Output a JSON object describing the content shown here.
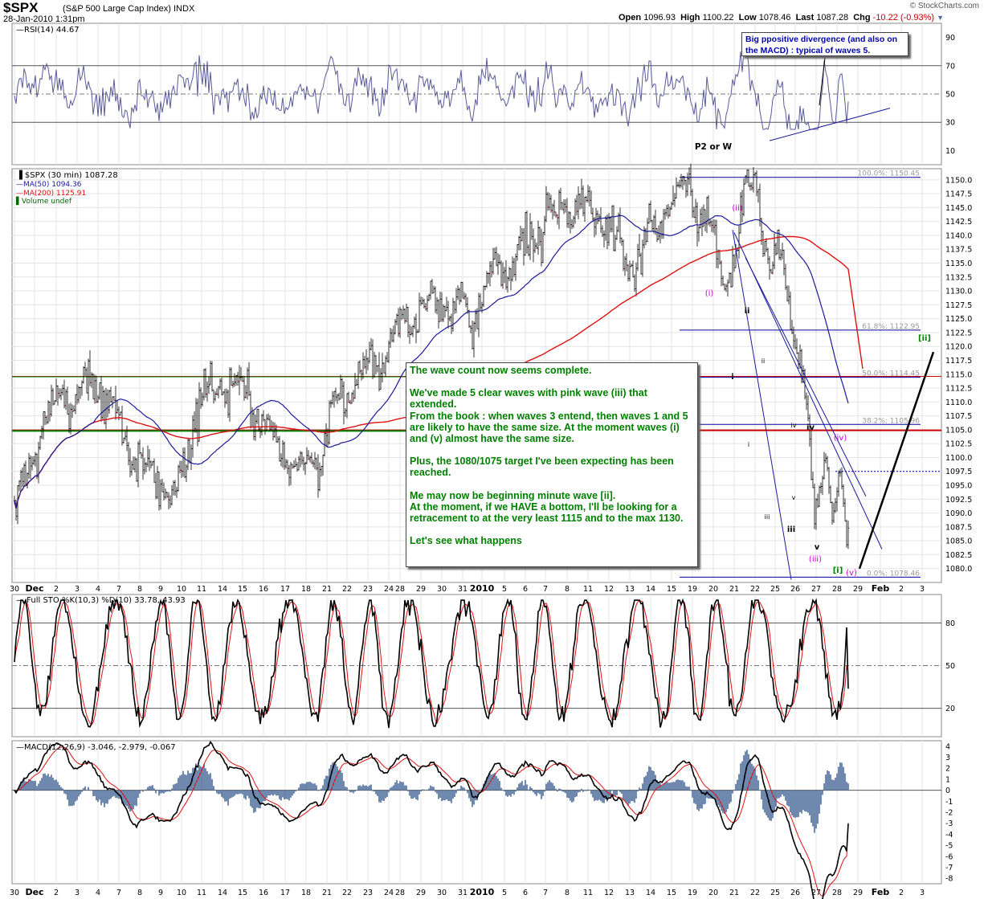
{
  "header": {
    "symbol": "$SPX",
    "description": "(S&P 500 Large Cap Index) INDX",
    "datetime": "28-Jan-2010 1:31pm",
    "brand": "© StockCharts.com",
    "open_label": "Open",
    "open_value": "1096.93",
    "high_label": "High",
    "high_value": "1100.22",
    "low_label": "Low",
    "low_value": "1078.46",
    "last_label": "Last",
    "last_value": "1087.28",
    "chg_label": "Chg",
    "chg_value": "-10.22 (-0.93%)"
  },
  "colors": {
    "rsi": "#5a5a9a",
    "ma50": "#1a1a9a",
    "ma200": "#dd1111",
    "stoK": "#000000",
    "stoD": "#dd1111",
    "macd": "#000000",
    "signal": "#dd1111",
    "hist": "#4a6a9a",
    "fib": "#0000a0",
    "pink": "#cc00cc",
    "note": "#008000",
    "resistance": "#cc0000",
    "support": "#008000"
  },
  "x_axis": {
    "ticks": [
      "30",
      "Dec",
      "2",
      "3",
      "4",
      "7",
      "8",
      "9",
      "10",
      "11",
      "14",
      "15",
      "16",
      "17",
      "18",
      "21",
      "22",
      "23",
      "24",
      "28",
      "29",
      "30",
      "31",
      "2010",
      "5",
      "6",
      "7",
      "8",
      "11",
      "12",
      "13",
      "14",
      "15",
      "19",
      "20",
      "21",
      "22",
      "25",
      "26",
      "27",
      "28",
      "29",
      "Feb",
      "2",
      "3"
    ]
  },
  "notes": {
    "main": [
      "The wave count now seems complete.",
      "We've made 5 clear waves with pink wave (iii) that extended.\nFrom the book : when waves 3 entend, then waves 1 and 5 are likely to have the same size. At the moment waves (i) and (v) almost have the same size.",
      "Plus, the 1080/1075 target I've been expecting has been reached.",
      "Me may now be beginning minute wave [ii].\nAt the moment, if we HAVE a bottom, I'll be looking for a retracement to at the very least 1115 and to the max 1130.",
      "Let's see what happens"
    ],
    "rsi": "Big ppositive divergence (and also on the MACD) : typical of waves 5.",
    "p2w": "P2 or W"
  },
  "chart_data": [
    {
      "type": "line",
      "title": "RSI(14) 44.67",
      "series": [
        {
          "name": "RSI(14)",
          "last": 44.67
        }
      ],
      "ylim": [
        0,
        100
      ],
      "yticks": [
        10,
        30,
        50,
        70,
        90
      ],
      "levels": [
        30,
        50,
        70
      ]
    },
    {
      "type": "candlestick",
      "title": "$SPX (30 min) 1087.28",
      "legend": [
        {
          "name": "$SPX (30 min)",
          "value": "1087.28"
        },
        {
          "name": "MA(50)",
          "value": "1094.36"
        },
        {
          "name": "MA(200)",
          "value": "1125.91"
        },
        {
          "name": "Volume undef",
          "value": ""
        }
      ],
      "ylim": [
        1077.5,
        1152
      ],
      "yticks": [
        1080,
        1082.5,
        1085,
        1087.5,
        1090,
        1092.5,
        1095,
        1097.5,
        1100,
        1102.5,
        1105,
        1107.5,
        1110,
        1112.5,
        1115,
        1117.5,
        1120,
        1122.5,
        1125,
        1127.5,
        1130,
        1132.5,
        1135,
        1137.5,
        1140,
        1142.5,
        1145,
        1147.5,
        1150
      ],
      "fib_levels": [
        {
          "label": "100.0%: 1150.45",
          "value": 1150.45
        },
        {
          "label": "61.8%: 1122.95",
          "value": 1122.95
        },
        {
          "label": "50.0%: 1114.45",
          "value": 1114.45
        },
        {
          "label": "38.2%: 1105.96",
          "value": 1105.96
        },
        {
          "label": "0.0%: 1078.46",
          "value": 1078.46
        }
      ],
      "horizontal_lines": [
        {
          "name": "red resistance",
          "value": 1114.6
        },
        {
          "name": "green 1",
          "value": 1114.6
        },
        {
          "name": "red support",
          "value": 1104.9
        },
        {
          "name": "green 2",
          "value": 1104.9
        }
      ],
      "wave_labels": [
        "(i)",
        "(ii)",
        "(iii)",
        "(iv)",
        "(v)",
        "i",
        "ii",
        "iii",
        "iv",
        "v",
        "i",
        "ii",
        "iii",
        "iv",
        "v",
        "[i]",
        "[ii]"
      ]
    },
    {
      "type": "line",
      "title": "Full STO %K(10,3) %D(10) 33.78, 43.93",
      "series": [
        {
          "name": "%K(10,3)",
          "last": 33.78
        },
        {
          "name": "%D(10)",
          "last": 43.93
        }
      ],
      "ylim": [
        0,
        100
      ],
      "yticks": [
        20,
        50,
        80
      ],
      "levels": [
        20,
        50,
        80
      ]
    },
    {
      "type": "line",
      "title": "MACD(12,26,9) -3.046, -2.979, -0.067",
      "series": [
        {
          "name": "MACD(12,26,9)",
          "last": -3.046
        },
        {
          "name": "Signal",
          "last": -2.979
        },
        {
          "name": "Histogram",
          "last": -0.067
        }
      ],
      "ylim": [
        -8.5,
        4.5
      ],
      "yticks": [
        -8,
        -7,
        -6,
        -5,
        -4,
        -3,
        -2,
        -1,
        0,
        1,
        2,
        3,
        4
      ]
    }
  ]
}
